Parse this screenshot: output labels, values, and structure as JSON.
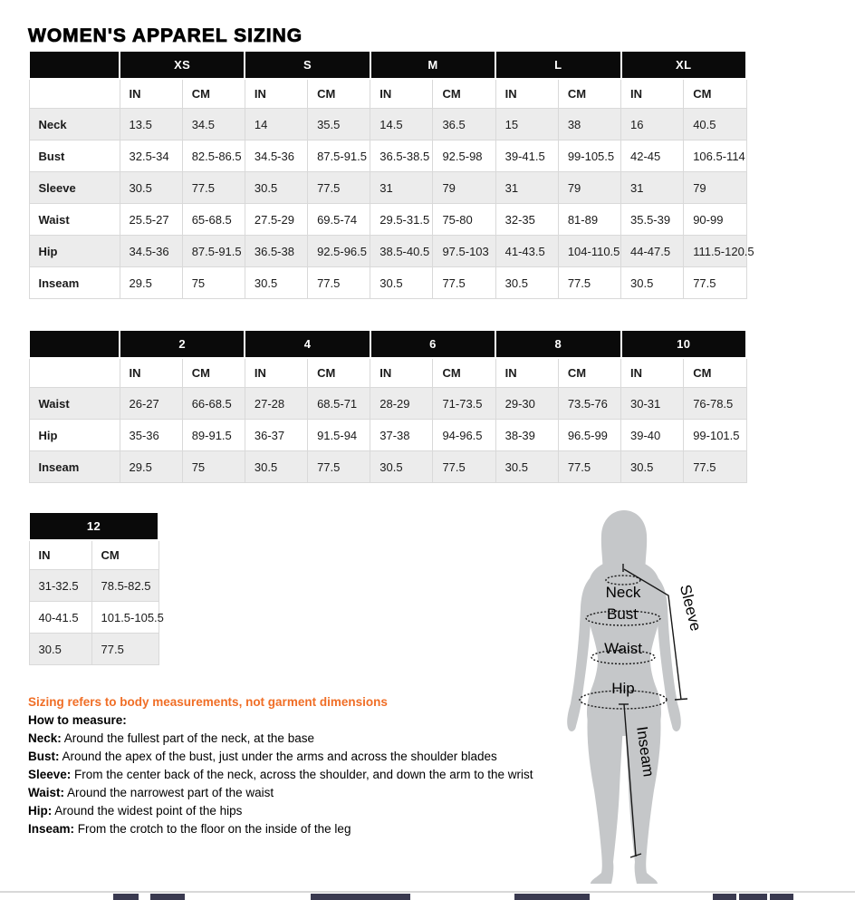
{
  "page": {
    "title": "WOMEN'S APPAREL SIZING"
  },
  "colors": {
    "header_bg": "#0a0a0a",
    "header_text": "#ffffff",
    "row_alt_bg": "#ececec",
    "cell_border": "#d9d9d9",
    "accent_orange": "#f06e26",
    "silhouette_gray": "#c5c7c9",
    "cutoff_bar": "#3a3a50"
  },
  "tables": [
    {
      "name": "letter-sizes",
      "has_label_column": true,
      "sizes": [
        "XS",
        "S",
        "M",
        "L",
        "XL"
      ],
      "unit_headers": [
        "IN",
        "CM"
      ],
      "rows": [
        {
          "label": "Neck",
          "values": [
            "13.5",
            "34.5",
            "14",
            "35.5",
            "14.5",
            "36.5",
            "15",
            "38",
            "16",
            "40.5"
          ]
        },
        {
          "label": "Bust",
          "values": [
            "32.5-34",
            "82.5-86.5",
            "34.5-36",
            "87.5-91.5",
            "36.5-38.5",
            "92.5-98",
            "39-41.5",
            "99-105.5",
            "42-45",
            "106.5-114"
          ]
        },
        {
          "label": "Sleeve",
          "values": [
            "30.5",
            "77.5",
            "30.5",
            "77.5",
            "31",
            "79",
            "31",
            "79",
            "31",
            "79"
          ]
        },
        {
          "label": "Waist",
          "values": [
            "25.5-27",
            "65-68.5",
            "27.5-29",
            "69.5-74",
            "29.5-31.5",
            "75-80",
            "32-35",
            "81-89",
            "35.5-39",
            "90-99"
          ]
        },
        {
          "label": "Hip",
          "values": [
            "34.5-36",
            "87.5-91.5",
            "36.5-38",
            "92.5-96.5",
            "38.5-40.5",
            "97.5-103",
            "41-43.5",
            "104-110.5",
            "44-47.5",
            "111.5-120.5"
          ]
        },
        {
          "label": "Inseam",
          "values": [
            "29.5",
            "75",
            "30.5",
            "77.5",
            "30.5",
            "77.5",
            "30.5",
            "77.5",
            "30.5",
            "77.5"
          ]
        }
      ]
    },
    {
      "name": "numeric-sizes",
      "has_label_column": true,
      "sizes": [
        "2",
        "4",
        "6",
        "8",
        "10"
      ],
      "unit_headers": [
        "IN",
        "CM"
      ],
      "rows": [
        {
          "label": "Waist",
          "values": [
            "26-27",
            "66-68.5",
            "27-28",
            "68.5-71",
            "28-29",
            "71-73.5",
            "29-30",
            "73.5-76",
            "30-31",
            "76-78.5"
          ]
        },
        {
          "label": "Hip",
          "values": [
            "35-36",
            "89-91.5",
            "36-37",
            "91.5-94",
            "37-38",
            "94-96.5",
            "38-39",
            "96.5-99",
            "39-40",
            "99-101.5"
          ]
        },
        {
          "label": "Inseam",
          "values": [
            "29.5",
            "75",
            "30.5",
            "77.5",
            "30.5",
            "77.5",
            "30.5",
            "77.5",
            "30.5",
            "77.5"
          ]
        }
      ]
    },
    {
      "name": "size-12",
      "has_label_column": false,
      "sizes": [
        "12"
      ],
      "unit_headers": [
        "IN",
        "CM"
      ],
      "rows": [
        {
          "label": null,
          "values": [
            "31-32.5",
            "78.5-82.5"
          ]
        },
        {
          "label": null,
          "values": [
            "40-41.5",
            "101.5-105.5"
          ]
        },
        {
          "label": null,
          "values": [
            "30.5",
            "77.5"
          ]
        }
      ]
    }
  ],
  "notes": {
    "warning": "Sizing refers to body measurements, not garment dimensions",
    "heading": "How to measure:",
    "items": [
      {
        "term": "Neck:",
        "desc": "Around the fullest part of the neck, at the base"
      },
      {
        "term": "Bust:",
        "desc": "Around the apex of the bust, just under the arms and across the shoulder blades"
      },
      {
        "term": "Sleeve:",
        "desc": "From the center back of the neck, across the shoulder, and down the arm to the wrist"
      },
      {
        "term": "Waist:",
        "desc": "Around the narrowest part of the waist"
      },
      {
        "term": "Hip:",
        "desc": "Around the widest point of the hips"
      },
      {
        "term": "Inseam:",
        "desc": "From the crotch to the floor on the inside of the leg"
      }
    ]
  },
  "figure": {
    "labels": {
      "neck": "Neck",
      "bust": "Bust",
      "waist": "Waist",
      "hip": "Hip",
      "sleeve": "Sleeve",
      "inseam": "Inseam"
    }
  }
}
